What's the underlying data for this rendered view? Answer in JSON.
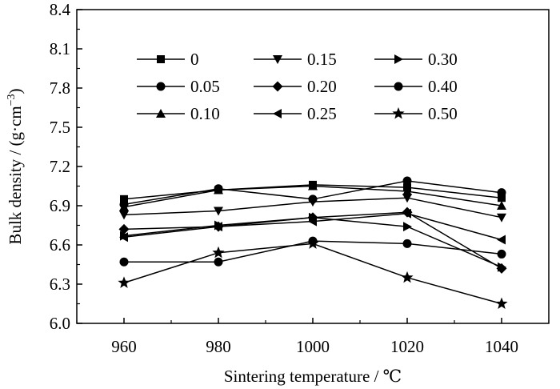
{
  "chart_data": {
    "type": "line",
    "title": "",
    "xlabel": "Sintering temperature / ℃",
    "ylabel_main": "Bulk density / (g·cm",
    "ylabel_sup": "−3",
    "ylabel_close": ")",
    "x": [
      960,
      980,
      1000,
      1020,
      1040
    ],
    "xlim": [
      950,
      1050
    ],
    "ylim": [
      6.0,
      8.4
    ],
    "yticks": [
      "6.0",
      "6.3",
      "6.6",
      "6.9",
      "7.2",
      "7.5",
      "7.8",
      "8.1",
      "8.4"
    ],
    "xticks": [
      "960",
      "980",
      "1000",
      "1020",
      "1040"
    ],
    "grid": false,
    "legend_placement": "top-left, 3 columns",
    "series": [
      {
        "name": "0",
        "marker": "square",
        "values": [
          6.95,
          7.02,
          7.06,
          7.04,
          6.96
        ]
      },
      {
        "name": "0.05",
        "marker": "circle",
        "values": [
          6.47,
          6.47,
          6.63,
          6.61,
          6.53
        ]
      },
      {
        "name": "0.10",
        "marker": "triangle-up",
        "values": [
          6.89,
          7.02,
          7.05,
          7.01,
          6.9
        ]
      },
      {
        "name": "0.15",
        "marker": "triangle-down",
        "values": [
          6.83,
          6.86,
          6.93,
          6.96,
          6.81
        ]
      },
      {
        "name": "0.20",
        "marker": "diamond",
        "values": [
          6.72,
          6.74,
          6.81,
          6.85,
          6.42
        ]
      },
      {
        "name": "0.25",
        "marker": "triangle-left",
        "values": [
          6.66,
          6.74,
          6.78,
          6.84,
          6.64
        ]
      },
      {
        "name": "0.30",
        "marker": "triangle-right",
        "values": [
          6.67,
          6.75,
          6.81,
          6.74,
          6.43
        ]
      },
      {
        "name": "0.40",
        "marker": "circle",
        "values": [
          6.91,
          7.03,
          6.95,
          7.09,
          7.0
        ]
      },
      {
        "name": "0.50",
        "marker": "star",
        "values": [
          6.31,
          6.54,
          6.61,
          6.35,
          6.15
        ]
      }
    ]
  }
}
